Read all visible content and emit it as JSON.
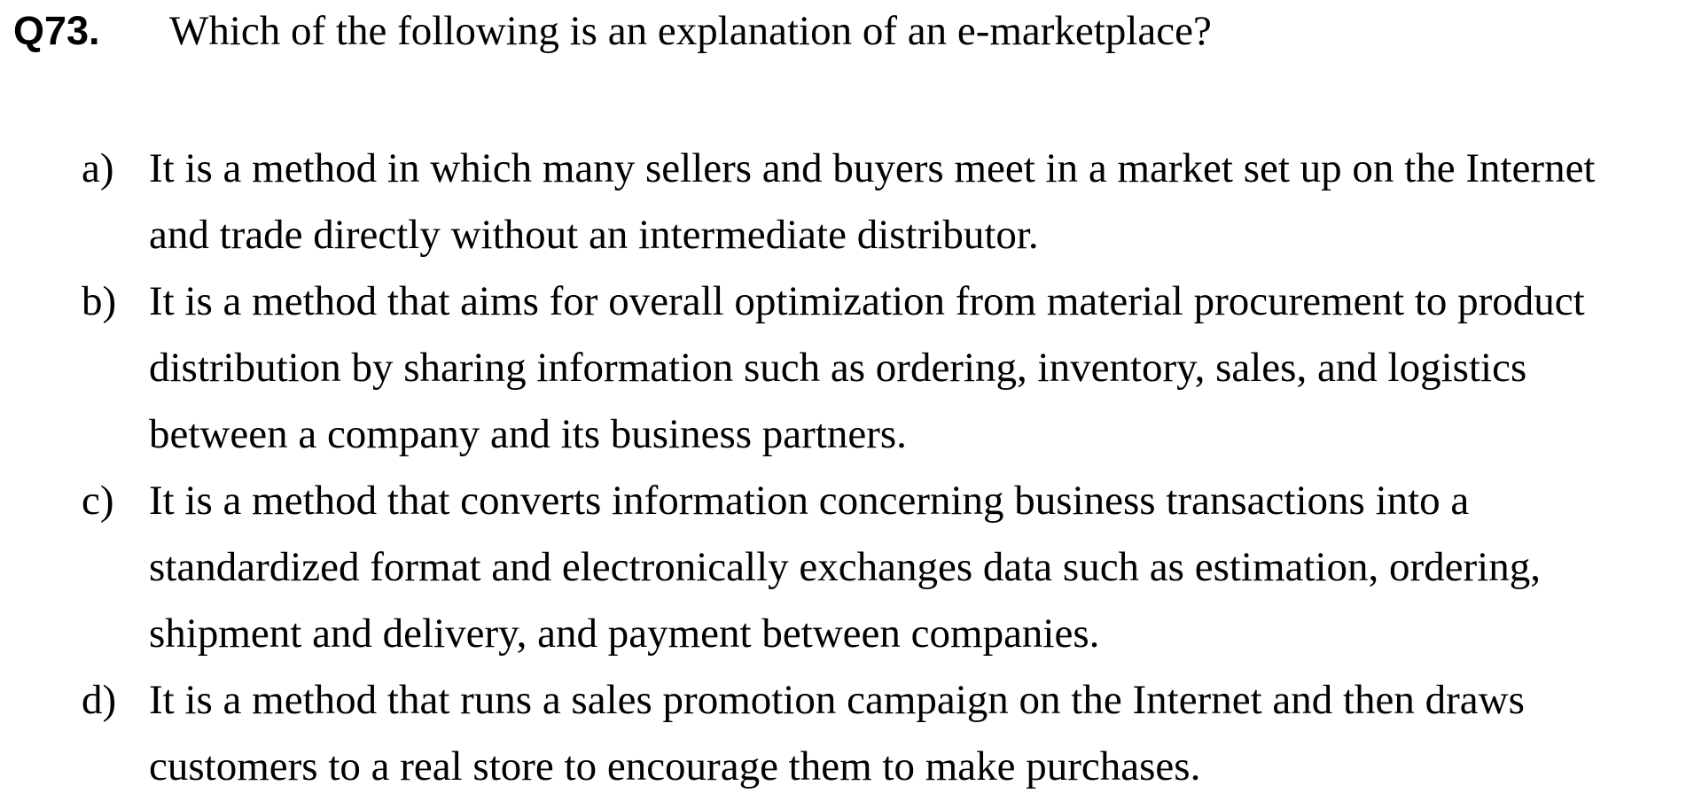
{
  "question": {
    "number": "Q73.",
    "text": "Which of the following is an explanation of an e-marketplace?"
  },
  "options": [
    {
      "letter": "a)",
      "lines": [
        "It is a method in which many sellers and buyers meet in a market set up on the Internet",
        "and trade directly without an intermediate distributor."
      ]
    },
    {
      "letter": "b)",
      "lines": [
        "It is a method that aims for overall optimization from material procurement to product",
        "distribution by sharing information such as ordering, inventory, sales, and logistics",
        "between a company and its business partners."
      ]
    },
    {
      "letter": "c)",
      "lines": [
        "It is a method that converts information concerning business transactions into a",
        "standardized format and electronically exchanges data such as estimation, ordering,",
        "shipment and delivery, and payment between companies."
      ]
    },
    {
      "letter": "d)",
      "lines": [
        "It is a method that runs a sales promotion campaign on the Internet and then draws",
        "customers to a real store to encourage them to make purchases."
      ]
    }
  ]
}
